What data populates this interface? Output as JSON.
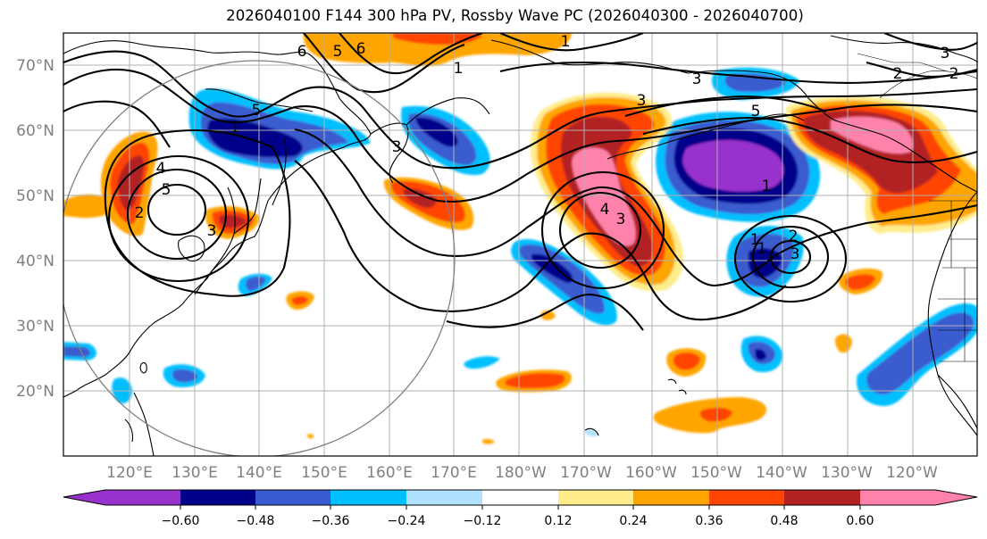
{
  "title": "2026040100 F144 300 hPa PV, Rossby Wave PC (2026040300 - 2026040700)",
  "map": {
    "lat_labels": [
      "70°N",
      "60°N",
      "50°N",
      "40°N",
      "30°N",
      "20°N"
    ],
    "lon_labels": [
      "120°E",
      "130°E",
      "140°E",
      "150°E",
      "160°E",
      "170°E",
      "180°W",
      "170°W",
      "160°W",
      "150°W",
      "140°W",
      "130°W",
      "120°W"
    ],
    "pv_contour_labels": [
      "1",
      "1",
      "2",
      "3",
      "3",
      "4",
      "5",
      "5",
      "6",
      "6",
      "5",
      "4",
      "3",
      "2",
      "1",
      "3",
      "1",
      "3",
      "2",
      "1",
      "3",
      "2",
      "1",
      "3",
      "5"
    ]
  },
  "colorbar": {
    "ticks": [
      "−0.60",
      "−0.48",
      "−0.36",
      "−0.24",
      "−0.12",
      "0.12",
      "0.24",
      "0.36",
      "0.48",
      "0.60"
    ],
    "colors": [
      "#9932CC",
      "#00008B",
      "#3A5BCF",
      "#00BFFF",
      "#B0E2FF",
      "#FFFFFF",
      "#FFEC8B",
      "#FFA500",
      "#FF4500",
      "#B22222",
      "#FF82AB"
    ]
  }
}
